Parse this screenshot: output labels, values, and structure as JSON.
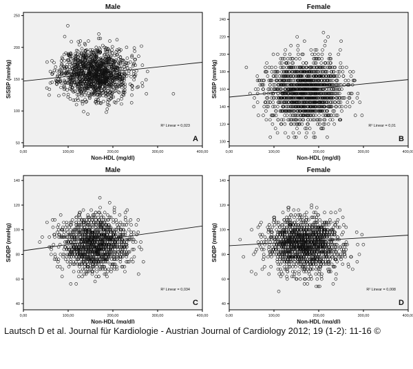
{
  "caption": "Lautsch D et al. Journal für Kardiologie - Austrian Journal of Cardiology 2012; 19 (1-2): 11-16 ©",
  "chart_data": [
    {
      "type": "scatter",
      "panel": "A",
      "title": "Male",
      "xlabel": "Non-HDL (mg/dl)",
      "ylabel": "SiSBP (mmHg)",
      "xlim": [
        0,
        400
      ],
      "ylim": [
        45,
        255
      ],
      "xticks": [
        "0,00",
        "100,00",
        "200,00",
        "300,00",
        "400,00"
      ],
      "yticks": [
        "50",
        "100",
        "150",
        "200",
        "250"
      ],
      "r2_label": "R² Linear = 0,023",
      "fit_line": {
        "x": [
          0,
          420
        ],
        "y": [
          147,
          178
        ]
      },
      "cloud": {
        "n": 1300,
        "x_mean": 160,
        "x_sd": 38,
        "y_mean": 159,
        "y_sd": 20,
        "step": 1,
        "seed": 11,
        "x_range": [
          25,
          400
        ],
        "y_range": [
          92,
          245
        ]
      }
    },
    {
      "type": "scatter",
      "panel": "B",
      "title": "Female",
      "xlabel": "Non-HDL (mg/dl)",
      "ylabel": "SiSBP (mmHg)",
      "xlim": [
        0,
        400
      ],
      "ylim": [
        95,
        248
      ],
      "xticks": [
        "0,00",
        "100,00",
        "200,00",
        "300,00",
        "400,00"
      ],
      "yticks": [
        "100",
        "120",
        "140",
        "160",
        "180",
        "200",
        "220",
        "240"
      ],
      "r2_label": "R² Linear = 0,01",
      "fit_line": {
        "x": [
          0,
          420
        ],
        "y": [
          151,
          172
        ]
      },
      "cloud": {
        "n": 1500,
        "x_mean": 170,
        "x_sd": 42,
        "y_mean": 157,
        "y_sd": 19,
        "step": 5,
        "seed": 23,
        "x_range": [
          20,
          390
        ],
        "y_range": [
          105,
          242
        ]
      }
    },
    {
      "type": "scatter",
      "panel": "C",
      "title": "Male",
      "xlabel": "Non-HDL (mg/dl)",
      "ylabel": "SiDBP (mmHg)",
      "xlim": [
        0,
        400
      ],
      "ylim": [
        35,
        144
      ],
      "xticks": [
        "0,00",
        "100,00",
        "200,00",
        "300,00",
        "400,00"
      ],
      "yticks": [
        "40",
        "60",
        "80",
        "100",
        "120",
        "140"
      ],
      "r2_label": "R² Linear = 0,034",
      "fit_line": {
        "x": [
          0,
          420
        ],
        "y": [
          83,
          104
        ]
      },
      "cloud": {
        "n": 1300,
        "x_mean": 160,
        "x_sd": 38,
        "y_mean": 89,
        "y_sd": 11,
        "step": 2,
        "seed": 37,
        "x_range": [
          25,
          395
        ],
        "y_range": [
          50,
          140
        ]
      }
    },
    {
      "type": "scatter",
      "panel": "D",
      "title": "Female",
      "xlabel": "Non-HDL (mg/dl)",
      "ylabel": "SiDBP (mmHg)",
      "xlim": [
        0,
        400
      ],
      "ylim": [
        35,
        144
      ],
      "xticks": [
        "0,00",
        "100,00",
        "200,00",
        "300,00",
        "400,00"
      ],
      "yticks": [
        "40",
        "60",
        "80",
        "100",
        "120",
        "140"
      ],
      "r2_label": "R² Linear = 0,008",
      "fit_line": {
        "x": [
          0,
          420
        ],
        "y": [
          87,
          96
        ]
      },
      "cloud": {
        "n": 1500,
        "x_mean": 170,
        "x_sd": 42,
        "y_mean": 88,
        "y_sd": 11,
        "step": 2,
        "seed": 53,
        "x_range": [
          20,
          390
        ],
        "y_range": [
          45,
          140
        ]
      }
    }
  ]
}
